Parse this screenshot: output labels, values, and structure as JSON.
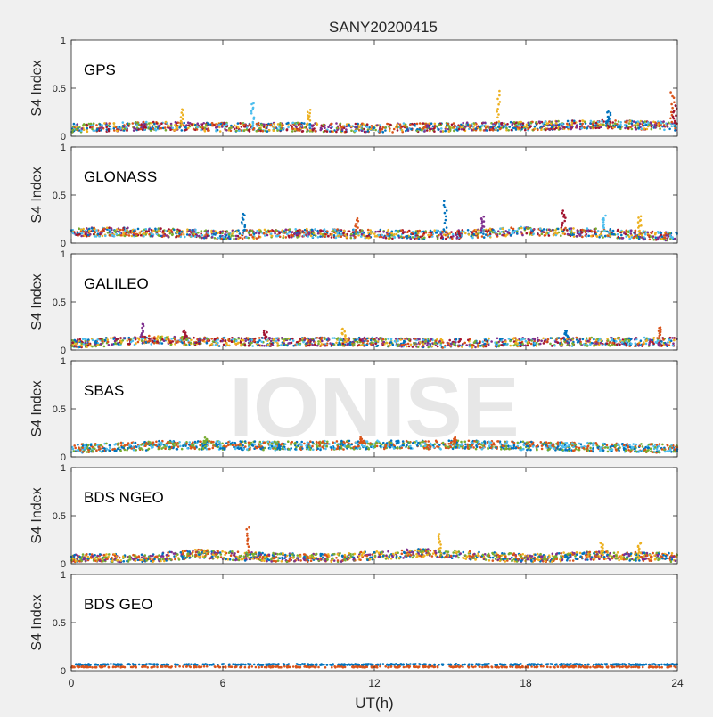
{
  "figure": {
    "title": "SANY20200415",
    "xlabel": "UT(h)",
    "ylabel": "S4 Index",
    "watermark": "IONISE",
    "background_color": "#f0f0f0",
    "axes_color": "#ffffff"
  },
  "chart_data": [
    {
      "type": "scatter",
      "panel_label": "GPS",
      "ylabel": "S4 Index",
      "xlim": [
        0,
        24
      ],
      "ylim": [
        0,
        1
      ],
      "yticks": [
        0,
        0.5,
        1
      ],
      "xticks": [
        0,
        6,
        12,
        18,
        24
      ],
      "show_xticklabels": false,
      "profile": [
        [
          0,
          0.1
        ],
        [
          3,
          0.12
        ],
        [
          6,
          0.11
        ],
        [
          9,
          0.11
        ],
        [
          12,
          0.1
        ],
        [
          15,
          0.11
        ],
        [
          18,
          0.12
        ],
        [
          21,
          0.14
        ],
        [
          24,
          0.12
        ]
      ],
      "spikes": [
        [
          7.2,
          0.35
        ],
        [
          16.9,
          0.47
        ],
        [
          23.8,
          0.46
        ],
        [
          23.9,
          0.33
        ],
        [
          4.4,
          0.28
        ],
        [
          21.3,
          0.26
        ],
        [
          9.4,
          0.27
        ]
      ],
      "series_colors": [
        "#0072BD",
        "#D95319",
        "#EDB120",
        "#7E2F8E",
        "#77AC30",
        "#4DBEEE",
        "#A2142F"
      ]
    },
    {
      "type": "scatter",
      "panel_label": "GLONASS",
      "ylabel": "S4 Index",
      "xlim": [
        0,
        24
      ],
      "ylim": [
        0,
        1
      ],
      "yticks": [
        0,
        0.5,
        1
      ],
      "xticks": [
        0,
        6,
        12,
        18,
        24
      ],
      "show_xticklabels": false,
      "profile": [
        [
          0,
          0.13
        ],
        [
          3,
          0.13
        ],
        [
          6,
          0.1
        ],
        [
          9,
          0.12
        ],
        [
          12,
          0.11
        ],
        [
          15,
          0.1
        ],
        [
          18,
          0.14
        ],
        [
          21,
          0.12
        ],
        [
          24,
          0.08
        ]
      ],
      "spikes": [
        [
          14.8,
          0.44
        ],
        [
          19.5,
          0.34
        ],
        [
          6.8,
          0.3
        ],
        [
          16.3,
          0.28
        ],
        [
          21.1,
          0.28
        ],
        [
          22.5,
          0.28
        ],
        [
          11.3,
          0.25
        ]
      ],
      "series_colors": [
        "#0072BD",
        "#D95319",
        "#EDB120",
        "#7E2F8E",
        "#77AC30",
        "#4DBEEE",
        "#A2142F"
      ]
    },
    {
      "type": "scatter",
      "panel_label": "GALILEO",
      "ylabel": "S4 Index",
      "xlim": [
        0,
        24
      ],
      "ylim": [
        0,
        1
      ],
      "yticks": [
        0,
        0.5,
        1
      ],
      "xticks": [
        0,
        6,
        12,
        18,
        24
      ],
      "show_xticklabels": false,
      "profile": [
        [
          0,
          0.08
        ],
        [
          3,
          0.12
        ],
        [
          6,
          0.1
        ],
        [
          9,
          0.1
        ],
        [
          12,
          0.1
        ],
        [
          15,
          0.08
        ],
        [
          18,
          0.1
        ],
        [
          21,
          0.1
        ],
        [
          24,
          0.1
        ]
      ],
      "spikes": [
        [
          2.8,
          0.28
        ],
        [
          23.3,
          0.24
        ],
        [
          7.7,
          0.2
        ],
        [
          10.8,
          0.22
        ],
        [
          19.6,
          0.2
        ],
        [
          4.5,
          0.2
        ]
      ],
      "series_colors": [
        "#0072BD",
        "#D95319",
        "#EDB120",
        "#7E2F8E",
        "#77AC30",
        "#4DBEEE",
        "#A2142F"
      ]
    },
    {
      "type": "scatter",
      "panel_label": "SBAS",
      "ylabel": "S4 Index",
      "xlim": [
        0,
        24
      ],
      "ylim": [
        0,
        1
      ],
      "yticks": [
        0,
        0.5,
        1
      ],
      "xticks": [
        0,
        6,
        12,
        18,
        24
      ],
      "show_xticklabels": false,
      "profile": [
        [
          0,
          0.1
        ],
        [
          4,
          0.14
        ],
        [
          8,
          0.13
        ],
        [
          12,
          0.14
        ],
        [
          16,
          0.14
        ],
        [
          20,
          0.12
        ],
        [
          24,
          0.1
        ]
      ],
      "spikes": [
        [
          15.2,
          0.21
        ],
        [
          5.3,
          0.2
        ],
        [
          11.5,
          0.2
        ]
      ],
      "series_colors": [
        "#D95319",
        "#0072BD",
        "#4DBEEE",
        "#77AC30"
      ]
    },
    {
      "type": "scatter",
      "panel_label": "BDS NGEO",
      "ylabel": "S4 Index",
      "xlim": [
        0,
        24
      ],
      "ylim": [
        0,
        1
      ],
      "yticks": [
        0,
        0.5,
        1
      ],
      "xticks": [
        0,
        6,
        12,
        18,
        24
      ],
      "show_xticklabels": false,
      "profile": [
        [
          0,
          0.07
        ],
        [
          3,
          0.07
        ],
        [
          5,
          0.12
        ],
        [
          7,
          0.09
        ],
        [
          10,
          0.07
        ],
        [
          12,
          0.1
        ],
        [
          14,
          0.13
        ],
        [
          16,
          0.1
        ],
        [
          18,
          0.07
        ],
        [
          21,
          0.1
        ],
        [
          24,
          0.08
        ]
      ],
      "spikes": [
        [
          7,
          0.38
        ],
        [
          14.6,
          0.3
        ],
        [
          21,
          0.22
        ],
        [
          22.5,
          0.22
        ]
      ],
      "series_colors": [
        "#0072BD",
        "#D95319",
        "#EDB120",
        "#7E2F8E",
        "#77AC30"
      ]
    },
    {
      "type": "scatter",
      "panel_label": "BDS GEO",
      "ylabel": "S4 Index",
      "xlim": [
        0,
        24
      ],
      "ylim": [
        0,
        1
      ],
      "yticks": [
        0,
        0.5,
        1
      ],
      "xticks": [
        0,
        6,
        12,
        18,
        24
      ],
      "xticklabels": [
        "0",
        "6",
        "12",
        "18",
        "24"
      ],
      "show_xticklabels": true,
      "xlabel": "UT(h)",
      "profile": [
        [
          0,
          0.06
        ],
        [
          24,
          0.06
        ]
      ],
      "spikes": [],
      "series_colors": [
        "#0072BD",
        "#D95319"
      ]
    }
  ]
}
